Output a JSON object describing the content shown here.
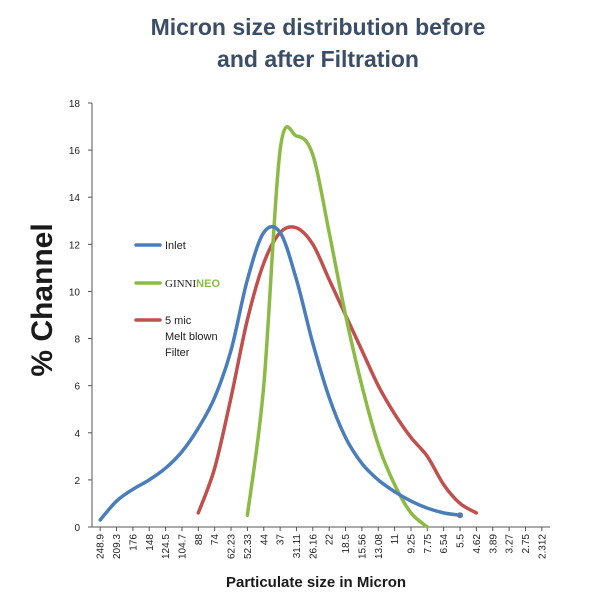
{
  "chart_data": {
    "type": "line",
    "title_lines": [
      "Micron size distribution before",
      "and after Filtration"
    ],
    "ylabel": "% Channel",
    "xlabel": "Particulate size in Micron",
    "categories": [
      "248.9",
      "209.3",
      "176",
      "148",
      "124.5",
      "104.7",
      "88",
      "74",
      "62.23",
      "52.33",
      "44",
      "37",
      "31.11",
      "26.16",
      "22",
      "18.5",
      "15.56",
      "13.08",
      "11",
      "9.25",
      "7.75",
      "6.54",
      "5.5",
      "4.62",
      "3.89",
      "3.27",
      "2.75",
      "2.312"
    ],
    "ylim": [
      0,
      18
    ],
    "yticks": [
      0,
      2,
      4,
      6,
      8,
      10,
      12,
      14,
      16,
      18
    ],
    "grid": false,
    "legend_position": "left, inside plot",
    "series": [
      {
        "name": "Inlet",
        "color": "#4a7ebb",
        "points": [
          {
            "x": "248.9",
            "y": 0.3
          },
          {
            "x": "209.3",
            "y": 1.1
          },
          {
            "x": "176",
            "y": 1.6
          },
          {
            "x": "148",
            "y": 2.0
          },
          {
            "x": "124.5",
            "y": 2.5
          },
          {
            "x": "104.7",
            "y": 3.2
          },
          {
            "x": "88",
            "y": 4.2
          },
          {
            "x": "74",
            "y": 5.5
          },
          {
            "x": "62.23",
            "y": 7.5
          },
          {
            "x": "52.33",
            "y": 10.5
          },
          {
            "x": "44",
            "y": 12.5
          },
          {
            "x": "37",
            "y": 12.5
          },
          {
            "x": "31.11",
            "y": 10.5
          },
          {
            "x": "26.16",
            "y": 7.8
          },
          {
            "x": "22",
            "y": 5.5
          },
          {
            "x": "18.5",
            "y": 3.8
          },
          {
            "x": "15.56",
            "y": 2.7
          },
          {
            "x": "13.08",
            "y": 2.0
          },
          {
            "x": "11",
            "y": 1.5
          },
          {
            "x": "9.25",
            "y": 1.1
          },
          {
            "x": "7.75",
            "y": 0.8
          },
          {
            "x": "6.54",
            "y": 0.6
          },
          {
            "x": "5.5",
            "y": 0.5
          }
        ]
      },
      {
        "name": "GINNINEO",
        "legend_parts": [
          "GINNI",
          "NEO"
        ],
        "color": "#8cbb45",
        "points": [
          {
            "x": "52.33",
            "y": 0.5
          },
          {
            "x": "44",
            "y": 6.0
          },
          {
            "x": "37",
            "y": 16.0
          },
          {
            "x": "31.11",
            "y": 16.6
          },
          {
            "x": "26.16",
            "y": 15.8
          },
          {
            "x": "22",
            "y": 12.5
          },
          {
            "x": "18.5",
            "y": 9.0
          },
          {
            "x": "15.56",
            "y": 6.0
          },
          {
            "x": "13.08",
            "y": 3.5
          },
          {
            "x": "11",
            "y": 1.8
          },
          {
            "x": "9.25",
            "y": 0.6
          },
          {
            "x": "7.75",
            "y": 0.0
          }
        ]
      },
      {
        "name": "5 mic Melt blown Filter",
        "legend_lines": [
          "5 mic",
          "Melt blown",
          "Filter"
        ],
        "color": "#c0504d",
        "points": [
          {
            "x": "88",
            "y": 0.6
          },
          {
            "x": "74",
            "y": 2.5
          },
          {
            "x": "62.23",
            "y": 5.5
          },
          {
            "x": "52.33",
            "y": 8.8
          },
          {
            "x": "44",
            "y": 11.2
          },
          {
            "x": "37",
            "y": 12.5
          },
          {
            "x": "31.11",
            "y": 12.7
          },
          {
            "x": "26.16",
            "y": 12.0
          },
          {
            "x": "22",
            "y": 10.5
          },
          {
            "x": "18.5",
            "y": 9.0
          },
          {
            "x": "15.56",
            "y": 7.5
          },
          {
            "x": "13.08",
            "y": 6.0
          },
          {
            "x": "11",
            "y": 4.8
          },
          {
            "x": "9.25",
            "y": 3.8
          },
          {
            "x": "7.75",
            "y": 3.0
          },
          {
            "x": "6.54",
            "y": 1.8
          },
          {
            "x": "5.5",
            "y": 1.0
          },
          {
            "x": "4.62",
            "y": 0.6
          }
        ]
      }
    ]
  }
}
